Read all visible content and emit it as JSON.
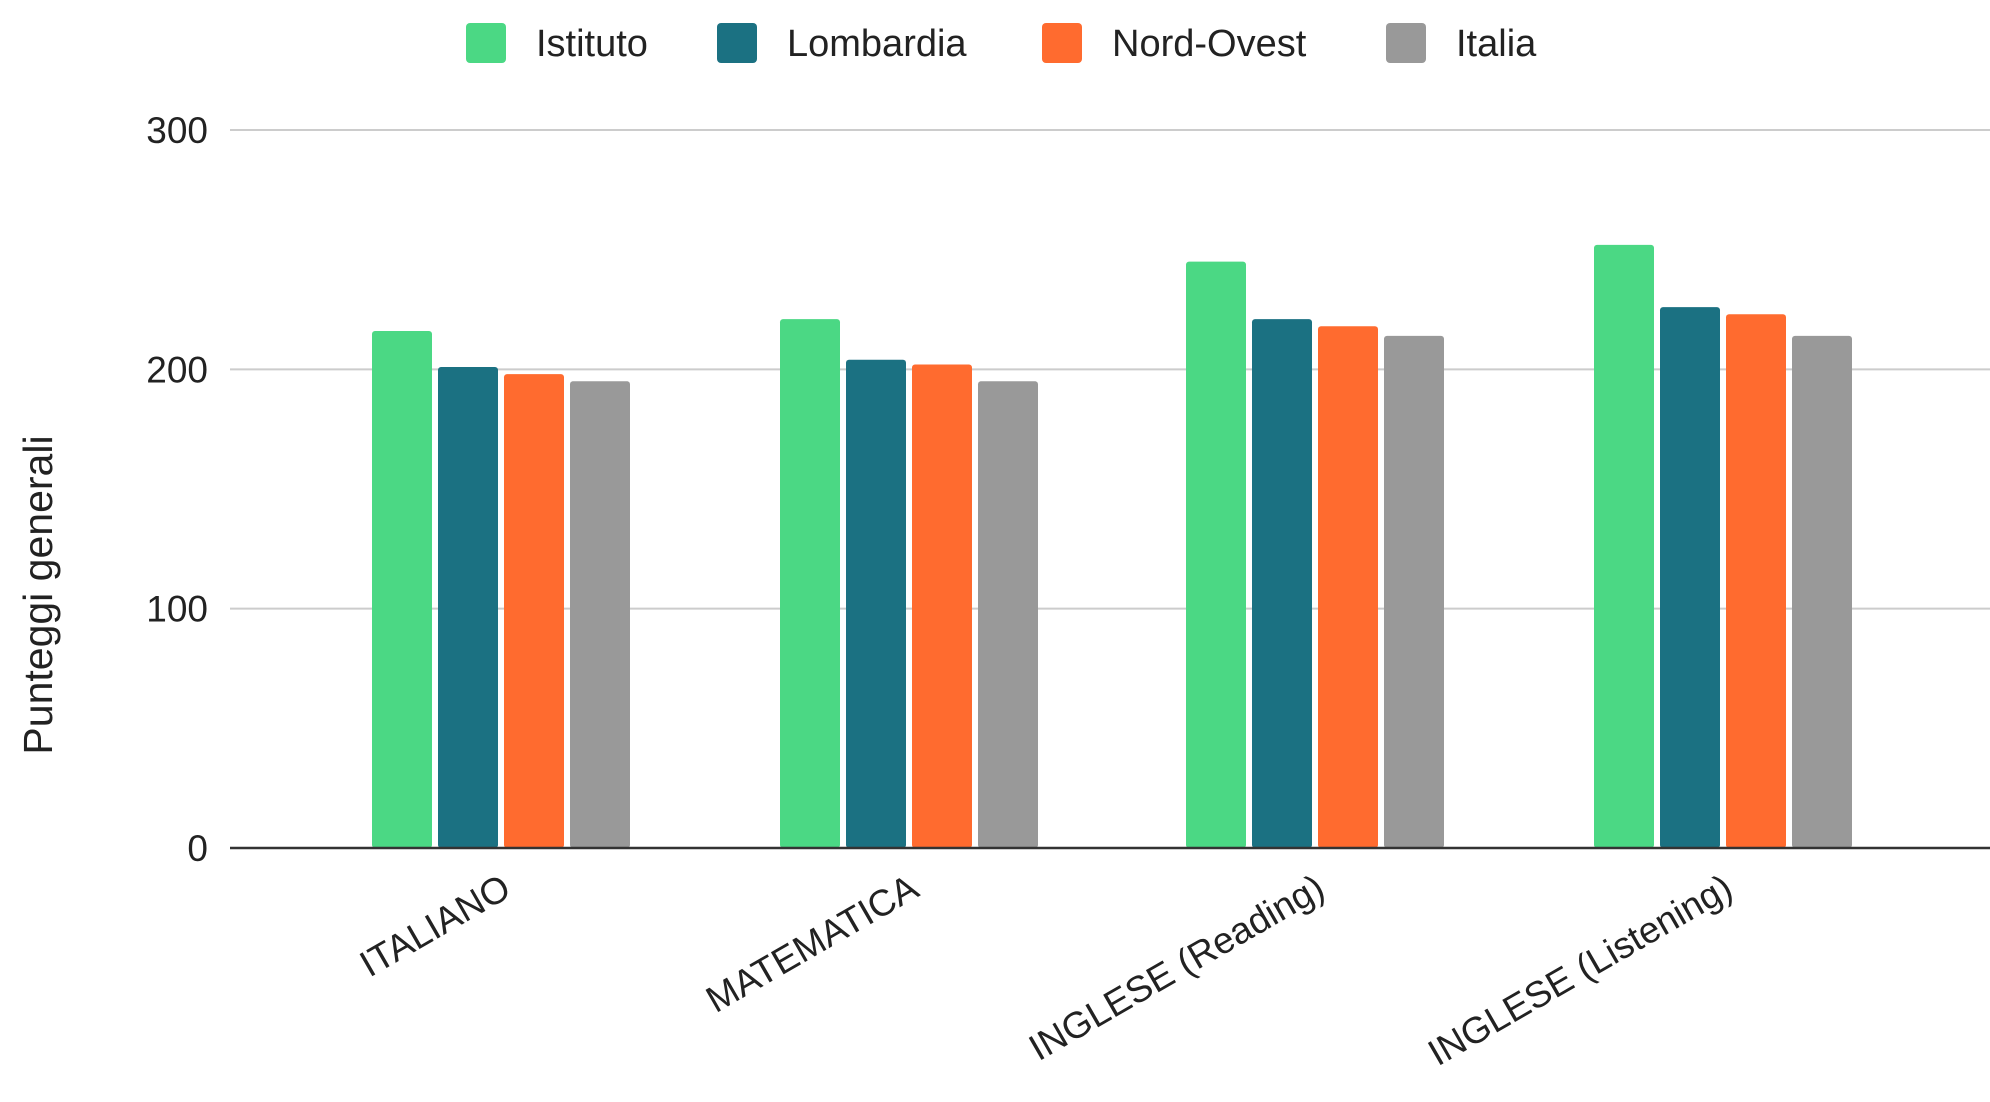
{
  "chart_data": {
    "type": "bar",
    "title": "",
    "xlabel": "",
    "ylabel": "Punteggi generali",
    "ylim": [
      0,
      300
    ],
    "yticks": [
      0,
      100,
      200,
      300
    ],
    "grid": true,
    "legend_position": "top-center",
    "categories": [
      "ITALIANO",
      "MATEMATICA",
      "INGLESE (Reading)",
      "INGLESE (Listening)"
    ],
    "series": [
      {
        "name": "Istituto",
        "color": "#4bd884",
        "values": [
          216,
          221,
          245,
          252
        ]
      },
      {
        "name": "Lombardia",
        "color": "#1b7182",
        "values": [
          201,
          204,
          221,
          226
        ]
      },
      {
        "name": "Nord-Ovest",
        "color": "#ff6b2f",
        "values": [
          198,
          202,
          218,
          223
        ]
      },
      {
        "name": "Italia",
        "color": "#999999",
        "values": [
          195,
          195,
          214,
          214
        ]
      }
    ]
  }
}
